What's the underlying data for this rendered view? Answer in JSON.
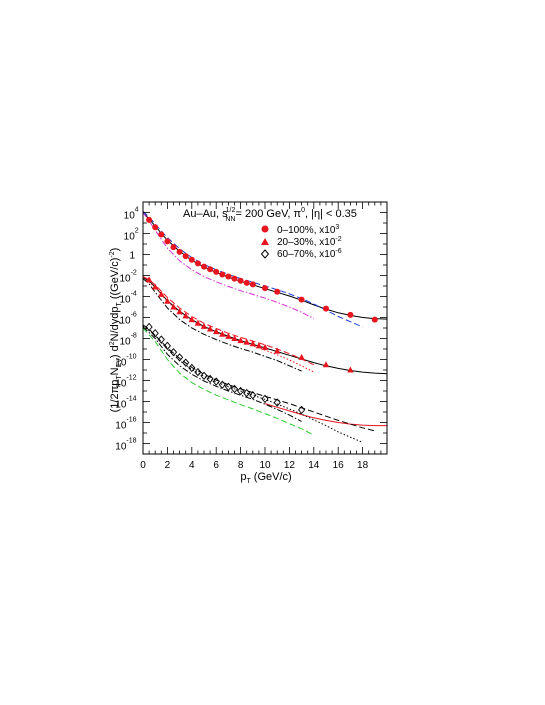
{
  "chart_data": {
    "type": "scatter",
    "title_parts": {
      "system": "Au–Au, s",
      "sqrt_sup": "1/2",
      "sqrt_sub": "NN",
      "energy": "= 200 GeV, π",
      "pi_sup": "0",
      "eta": ", |η| < 0.35"
    },
    "xlabel_parts": {
      "main": "p",
      "sub": "T",
      "rest": " (GeV/c)"
    },
    "ylabel_parts": {
      "p1": "(1/2πp",
      "s1": "T",
      "p2": "N",
      "s2": "EV",
      "p3": ") d",
      "sup1": "2",
      "p4": "N/dydp",
      "s3": "T",
      "p5": " ((GeV/c)",
      "sup2": "-2",
      "p6": ")"
    },
    "xlim": [
      0,
      20
    ],
    "ylim_log10": [
      -19,
      5
    ],
    "y_scale": "log",
    "xticks": [
      "0",
      "2",
      "4",
      "6",
      "8",
      "10",
      "12",
      "14",
      "16",
      "18"
    ],
    "yticks": [
      {
        "base": "10",
        "exp": "4",
        "pow": 4
      },
      {
        "base": "10",
        "exp": "2",
        "pow": 2
      },
      {
        "base": "1",
        "exp": "",
        "pow": 0
      },
      {
        "base": "10",
        "exp": "-2",
        "pow": -2
      },
      {
        "base": "10",
        "exp": "-4",
        "pow": -4
      },
      {
        "base": "10",
        "exp": "-6",
        "pow": -6
      },
      {
        "base": "10",
        "exp": "-8",
        "pow": -8
      },
      {
        "base": "10",
        "exp": "-10",
        "pow": -10
      },
      {
        "base": "10",
        "exp": "-12",
        "pow": -12
      },
      {
        "base": "10",
        "exp": "-14",
        "pow": -14
      },
      {
        "base": "10",
        "exp": "-16",
        "pow": -16
      },
      {
        "base": "10",
        "exp": "-18",
        "pow": -18
      }
    ],
    "legend": [
      {
        "label": "0–100%, x10",
        "sup": "3",
        "marker": "circle",
        "color": "#e8141e"
      },
      {
        "label": "20–30%, x10",
        "sup": "-2",
        "marker": "triangle",
        "color": "#e8141e"
      },
      {
        "label": "60–70%, x10",
        "sup": "-6",
        "marker": "diamond-open",
        "color": "#000000"
      }
    ],
    "legend_position": "top-right",
    "series": [
      {
        "label": "0–100%, x10^3",
        "marker": "circle",
        "color": "#e8141e",
        "points": [
          [
            0.5,
            3.3
          ],
          [
            1,
            2.6
          ],
          [
            1.5,
            1.9
          ],
          [
            2,
            1.25
          ],
          [
            2.5,
            0.7
          ],
          [
            3,
            0.25
          ],
          [
            3.5,
            -0.15
          ],
          [
            4,
            -0.5
          ],
          [
            4.5,
            -0.85
          ],
          [
            5,
            -1.15
          ],
          [
            5.5,
            -1.4
          ],
          [
            6,
            -1.65
          ],
          [
            6.5,
            -1.9
          ],
          [
            7,
            -2.1
          ],
          [
            7.5,
            -2.3
          ],
          [
            8,
            -2.5
          ],
          [
            8.5,
            -2.7
          ],
          [
            9,
            -2.85
          ],
          [
            10,
            -3.2
          ],
          [
            11,
            -3.55
          ],
          [
            13,
            -4.3
          ],
          [
            15,
            -5.15
          ],
          [
            17,
            -5.75
          ],
          [
            19,
            -6.2
          ]
        ]
      },
      {
        "label": "20–30%, x10^-2",
        "marker": "triangle",
        "color": "#e8141e",
        "points": [
          [
            0.5,
            -2.4
          ],
          [
            1,
            -3.1
          ],
          [
            1.5,
            -3.8
          ],
          [
            2,
            -4.45
          ],
          [
            2.5,
            -5.0
          ],
          [
            3,
            -5.45
          ],
          [
            3.5,
            -5.85
          ],
          [
            4,
            -6.2
          ],
          [
            4.5,
            -6.55
          ],
          [
            5,
            -6.85
          ],
          [
            5.5,
            -7.1
          ],
          [
            6,
            -7.35
          ],
          [
            6.5,
            -7.6
          ],
          [
            7,
            -7.8
          ],
          [
            7.5,
            -8.0
          ],
          [
            8,
            -8.2
          ],
          [
            8.5,
            -8.35
          ],
          [
            9,
            -8.5
          ],
          [
            9.5,
            -8.7
          ],
          [
            10,
            -8.85
          ],
          [
            11,
            -9.2
          ],
          [
            13,
            -9.8
          ],
          [
            15,
            -10.5
          ],
          [
            17,
            -11.0
          ]
        ]
      },
      {
        "label": "60–70%, x10^-6",
        "marker": "diamond-open",
        "color": "#000000",
        "points": [
          [
            0.5,
            -6.9
          ],
          [
            1,
            -7.5
          ],
          [
            1.5,
            -8.1
          ],
          [
            2,
            -8.7
          ],
          [
            2.5,
            -9.3
          ],
          [
            3,
            -9.8
          ],
          [
            3.5,
            -10.3
          ],
          [
            4,
            -10.8
          ],
          [
            4.5,
            -11.2
          ],
          [
            5,
            -11.55
          ],
          [
            5.5,
            -11.85
          ],
          [
            6,
            -12.1
          ],
          [
            6.5,
            -12.4
          ],
          [
            7,
            -12.6
          ],
          [
            7.5,
            -12.8
          ],
          [
            8,
            -13.0
          ],
          [
            8.5,
            -13.2
          ],
          [
            9,
            -13.4
          ],
          [
            10,
            -13.75
          ],
          [
            11,
            -14.1
          ],
          [
            13,
            -14.8
          ]
        ]
      }
    ],
    "curves": [
      {
        "color": "#000000",
        "style": "solid",
        "x": [
          0,
          0.5,
          1,
          2,
          3,
          4,
          5,
          6,
          7,
          8,
          9,
          10,
          11,
          12,
          13,
          14,
          15,
          16,
          17,
          18,
          19,
          20
        ],
        "y": [
          4.0,
          3.4,
          2.7,
          1.35,
          0.3,
          -0.55,
          -1.2,
          -1.7,
          -2.15,
          -2.55,
          -2.9,
          -3.25,
          -3.6,
          -3.95,
          -4.35,
          -4.8,
          -5.2,
          -5.55,
          -5.8,
          -6.0,
          -6.1,
          -6.15
        ]
      },
      {
        "color": "#1f3fd8",
        "style": "dashed",
        "x": [
          0,
          0.5,
          1,
          2,
          3,
          4,
          5,
          6,
          7,
          8,
          9,
          10,
          11,
          12,
          13,
          14,
          15,
          16,
          17,
          18
        ],
        "y": [
          4.1,
          3.55,
          2.9,
          1.6,
          0.55,
          -0.3,
          -0.95,
          -1.45,
          -1.9,
          -2.3,
          -2.65,
          -3.0,
          -3.35,
          -3.75,
          -4.2,
          -4.7,
          -5.3,
          -5.9,
          -6.4,
          -6.9
        ]
      },
      {
        "color": "#d52fd5",
        "style": "dashdot",
        "x": [
          0,
          0.5,
          1,
          2,
          3,
          4,
          5,
          6,
          7,
          8,
          9,
          10,
          11,
          12,
          13,
          14
        ],
        "y": [
          4.0,
          3.2,
          2.3,
          0.6,
          -0.6,
          -1.45,
          -2.1,
          -2.6,
          -3.05,
          -3.45,
          -3.8,
          -4.15,
          -4.55,
          -5.0,
          -5.5,
          -6.1
        ]
      },
      {
        "color": "#000000",
        "style": "solid",
        "x": [
          0,
          0.5,
          1,
          2,
          3,
          4,
          5,
          6,
          7,
          8,
          9,
          10,
          11,
          12,
          13,
          14,
          15,
          16,
          17,
          18,
          19,
          20
        ],
        "y": [
          -2.2,
          -2.5,
          -3.1,
          -4.4,
          -5.4,
          -6.2,
          -6.85,
          -7.35,
          -7.8,
          -8.2,
          -8.55,
          -8.9,
          -9.25,
          -9.6,
          -9.95,
          -10.3,
          -10.6,
          -10.85,
          -11.05,
          -11.2,
          -11.3,
          -11.35
        ]
      },
      {
        "color": "#e8141e",
        "style": "dashed",
        "x": [
          0,
          0.5,
          1,
          2,
          3,
          4,
          5,
          6,
          7,
          8,
          9,
          10,
          11,
          12,
          13,
          14
        ],
        "y": [
          -2.1,
          -2.4,
          -2.9,
          -4.1,
          -5.1,
          -5.9,
          -6.55,
          -7.05,
          -7.5,
          -7.9,
          -8.25,
          -8.6,
          -9.0,
          -9.45,
          -9.95,
          -10.5
        ]
      },
      {
        "color": "#e8141e",
        "style": "dotted",
        "x": [
          0,
          1,
          2,
          3,
          4,
          5,
          6,
          7,
          8,
          9,
          10,
          11,
          12,
          13,
          14
        ],
        "y": [
          -2.2,
          -3.1,
          -4.5,
          -5.55,
          -6.35,
          -6.95,
          -7.45,
          -7.9,
          -8.3,
          -8.7,
          -9.1,
          -9.55,
          -10.05,
          -10.6,
          -11.2
        ]
      },
      {
        "color": "#000000",
        "style": "dashdot",
        "x": [
          0,
          0.5,
          1,
          2,
          3,
          4,
          5,
          6,
          7,
          8,
          9,
          10,
          11,
          12,
          13
        ],
        "y": [
          -2.3,
          -2.8,
          -3.6,
          -5.1,
          -6.2,
          -7.0,
          -7.6,
          -8.1,
          -8.55,
          -8.95,
          -9.3,
          -9.7,
          -10.1,
          -10.6,
          -11.1
        ]
      },
      {
        "color": "#e8141e",
        "style": "solid",
        "x": [
          10,
          11,
          12,
          13,
          14,
          15,
          16,
          17,
          18,
          19,
          20
        ],
        "y": [
          -14.2,
          -14.55,
          -14.9,
          -15.25,
          -15.55,
          -15.8,
          -16.0,
          -16.15,
          -16.25,
          -16.3,
          -16.3
        ]
      },
      {
        "color": "#000000",
        "style": "dashed",
        "x": [
          0,
          0.5,
          1,
          2,
          3,
          4,
          5,
          6,
          7,
          8,
          9,
          10,
          11,
          12,
          13,
          14,
          15,
          16,
          17,
          18,
          19
        ],
        "y": [
          -6.7,
          -7.1,
          -7.7,
          -8.9,
          -9.9,
          -10.75,
          -11.4,
          -11.95,
          -12.4,
          -12.8,
          -13.15,
          -13.5,
          -13.85,
          -14.2,
          -14.6,
          -15.0,
          -15.4,
          -15.8,
          -16.15,
          -16.5,
          -16.8
        ]
      },
      {
        "color": "#000000",
        "style": "dotted",
        "x": [
          0,
          1,
          2,
          3,
          4,
          5,
          6,
          7,
          8,
          9,
          10,
          11,
          12,
          13,
          14,
          15,
          16,
          17,
          18
        ],
        "y": [
          -6.8,
          -7.7,
          -9.0,
          -10.1,
          -10.95,
          -11.6,
          -12.15,
          -12.6,
          -13.0,
          -13.4,
          -13.8,
          -14.25,
          -14.7,
          -15.2,
          -15.75,
          -16.3,
          -16.9,
          -17.4,
          -17.9
        ]
      },
      {
        "color": "#000000",
        "style": "dashdot",
        "x": [
          0,
          1,
          2,
          3,
          4,
          5,
          6,
          7,
          8,
          9,
          10,
          11,
          12,
          13
        ],
        "y": [
          -6.9,
          -8.0,
          -9.5,
          -10.6,
          -11.4,
          -12.05,
          -12.55,
          -13.0,
          -13.4,
          -13.8,
          -14.25,
          -14.75,
          -15.3,
          -15.9
        ]
      },
      {
        "color": "#2ecc2e",
        "style": "dashed",
        "x": [
          0,
          1,
          2,
          3,
          4,
          5,
          6,
          7,
          8,
          9,
          10,
          11,
          12,
          13,
          14
        ],
        "y": [
          -7.0,
          -8.3,
          -10.0,
          -11.3,
          -12.2,
          -12.85,
          -13.4,
          -13.85,
          -14.3,
          -14.7,
          -15.15,
          -15.6,
          -16.1,
          -16.6,
          -17.2
        ]
      }
    ]
  }
}
